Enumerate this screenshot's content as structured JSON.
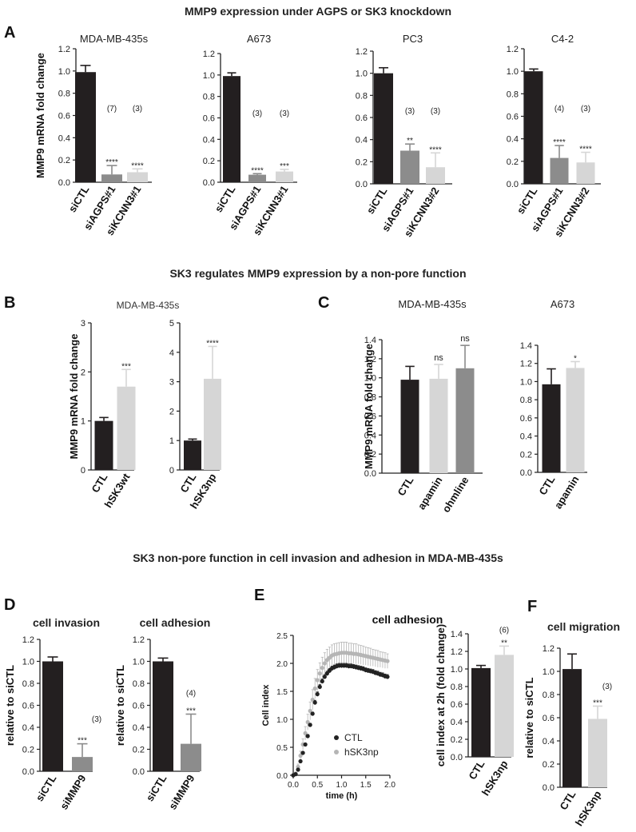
{
  "figure": {
    "section_a_title": "MMP9 expression under AGPS or SK3 knockdown",
    "section_bc_title": "SK3 regulates MMP9 expression by a non-pore function",
    "section_def_title": "SK3 non-pore function in cell invasion and adhesion in MDA-MB-435s",
    "panel_labels": [
      "A",
      "B",
      "C",
      "D",
      "E",
      "F"
    ],
    "shared_titles": {
      "b": "MDA-MB-435s"
    }
  },
  "colors": {
    "black": "#231f20",
    "gray": "#8c8c8c",
    "light": "#d6d6d6",
    "ctl_dot": "#222222",
    "np_dot": "#b5b5b5"
  },
  "chart_data": [
    {
      "id": "a1",
      "type": "bar",
      "title": "MDA-MB-435s",
      "ylabel": "MMP9 mRNA fold change",
      "ylim": [
        0,
        1.2
      ],
      "yticks": [
        "0.0",
        "0.2",
        "0.4",
        "0.6",
        "0.8",
        "1.0",
        "1.2"
      ],
      "categories": [
        "siCTL",
        "siAGPS#1",
        "siKCNN3#1"
      ],
      "values": [
        0.99,
        0.07,
        0.09
      ],
      "errors": [
        0.06,
        0.08,
        0.03
      ],
      "colors": [
        "black",
        "gray",
        "light"
      ],
      "stars": [
        "",
        "****",
        "****"
      ],
      "n_labels": [
        "",
        "(7)",
        "(3)"
      ]
    },
    {
      "id": "a2",
      "type": "bar",
      "title": "A673",
      "ylabel": "",
      "ylim": [
        0,
        1.2
      ],
      "yticks": [
        "0.0",
        "0.2",
        "0.4",
        "0.6",
        "0.8",
        "1.0",
        "1.2"
      ],
      "categories": [
        "siCTL",
        "siAGPS#1",
        "siKCNN3#1"
      ],
      "values": [
        0.99,
        0.07,
        0.1
      ],
      "errors": [
        0.03,
        0.01,
        0.02
      ],
      "colors": [
        "black",
        "gray",
        "light"
      ],
      "stars": [
        "",
        "****",
        "***"
      ],
      "n_labels": [
        "",
        "(3)",
        "(3)"
      ]
    },
    {
      "id": "a3",
      "type": "bar",
      "title": "PC3",
      "ylabel": "",
      "ylim": [
        0,
        1.2
      ],
      "yticks": [
        "0.0",
        "0.2",
        "0.4",
        "0.6",
        "0.8",
        "1.0",
        "1.2"
      ],
      "categories": [
        "siCTL",
        "siAGPS#1",
        "siKCNN3#2"
      ],
      "values": [
        1.0,
        0.3,
        0.15
      ],
      "errors": [
        0.05,
        0.06,
        0.13
      ],
      "colors": [
        "black",
        "gray",
        "light"
      ],
      "stars": [
        "",
        "**",
        "****"
      ],
      "n_labels": [
        "",
        "(3)",
        "(3)"
      ]
    },
    {
      "id": "a4",
      "type": "bar",
      "title": "C4-2",
      "ylabel": "",
      "ylim": [
        0,
        1.2
      ],
      "yticks": [
        "0.0",
        "0.2",
        "0.4",
        "0.6",
        "0.8",
        "1.0",
        "1.2"
      ],
      "categories": [
        "siCTL",
        "siAGPS#1",
        "siKCNN3#2"
      ],
      "values": [
        1.0,
        0.23,
        0.19
      ],
      "errors": [
        0.02,
        0.11,
        0.09
      ],
      "colors": [
        "black",
        "gray",
        "light"
      ],
      "stars": [
        "",
        "****",
        "****"
      ],
      "n_labels": [
        "",
        "(4)",
        "(3)"
      ]
    },
    {
      "id": "b1",
      "type": "bar",
      "title": "",
      "ylabel": "MMP9 mRNA fold change",
      "ylim": [
        0,
        3
      ],
      "yticks": [
        "0",
        "1",
        "2",
        "3"
      ],
      "categories": [
        "CTL",
        "hSK3wt"
      ],
      "values": [
        1.0,
        1.7
      ],
      "errors": [
        0.07,
        0.35
      ],
      "colors": [
        "black",
        "light"
      ],
      "stars": [
        "",
        "***"
      ],
      "n_labels": [
        "",
        ""
      ]
    },
    {
      "id": "b2",
      "type": "bar",
      "title": "",
      "ylabel": "",
      "ylim": [
        0,
        5
      ],
      "yticks": [
        "0",
        "1",
        "2",
        "3",
        "4",
        "5"
      ],
      "categories": [
        "CTL",
        "hSK3np"
      ],
      "values": [
        1.0,
        3.1
      ],
      "errors": [
        0.05,
        1.1
      ],
      "colors": [
        "black",
        "light"
      ],
      "stars": [
        "",
        "****"
      ],
      "n_labels": [
        "",
        ""
      ]
    },
    {
      "id": "c1",
      "type": "bar",
      "title": "MDA-MB-435s",
      "ylabel": "MMP9 mRNA fold change",
      "ylim": [
        0,
        1.4
      ],
      "yticks": [
        "0.0",
        "0.2",
        "0.4",
        "0.6",
        "0.8",
        "1.0",
        "1.2",
        "1.4"
      ],
      "categories": [
        "CTL",
        "apamin",
        "ohmline"
      ],
      "values": [
        0.98,
        0.99,
        1.1
      ],
      "errors": [
        0.14,
        0.15,
        0.24
      ],
      "colors": [
        "black",
        "light",
        "gray"
      ],
      "stars": [
        "",
        "ns",
        "ns"
      ],
      "n_labels": [
        "",
        "",
        ""
      ]
    },
    {
      "id": "c2",
      "type": "bar",
      "title": "A673",
      "ylabel": "",
      "ylim": [
        0,
        1.4
      ],
      "yticks": [
        "0.0",
        "0.2",
        "0.4",
        "0.6",
        "0.8",
        "1.0",
        "1.2",
        "1.4"
      ],
      "categories": [
        "CTL",
        "apamin"
      ],
      "values": [
        0.97,
        1.15
      ],
      "errors": [
        0.17,
        0.07
      ],
      "colors": [
        "black",
        "light"
      ],
      "stars": [
        "",
        "*"
      ],
      "n_labels": [
        "",
        ""
      ]
    },
    {
      "id": "d1",
      "type": "bar",
      "title": "cell invasion",
      "ylabel": "relative to siCTL",
      "ylim": [
        0,
        1.2
      ],
      "yticks": [
        "0.0",
        "0.2",
        "0.4",
        "0.6",
        "0.8",
        "1.0",
        "1.2"
      ],
      "categories": [
        "siCTL",
        "siMMP9"
      ],
      "values": [
        1.0,
        0.13
      ],
      "errors": [
        0.04,
        0.12
      ],
      "colors": [
        "black",
        "gray"
      ],
      "stars": [
        "",
        "***"
      ],
      "n_labels": [
        "",
        "(3)"
      ]
    },
    {
      "id": "d2",
      "type": "bar",
      "title": "cell adhesion",
      "ylabel": "relative to siCTL",
      "ylim": [
        0,
        1.2
      ],
      "yticks": [
        "0.0",
        "0.2",
        "0.4",
        "0.6",
        "0.8",
        "1.0",
        "1.2"
      ],
      "categories": [
        "siCTL",
        "siMMP9"
      ],
      "values": [
        1.0,
        0.25
      ],
      "errors": [
        0.03,
        0.27
      ],
      "colors": [
        "black",
        "gray"
      ],
      "stars": [
        "",
        "***"
      ],
      "n_labels": [
        "",
        "(4)"
      ]
    },
    {
      "id": "e1",
      "type": "scatter",
      "title": "cell adhesion",
      "xlabel": "time (h)",
      "ylabel": "Cell index",
      "xlim": [
        0,
        2
      ],
      "ylim": [
        0,
        2.5
      ],
      "xticks": [
        "0.0",
        "0.5",
        "1.0",
        "1.5",
        "2.0"
      ],
      "yticks": [
        "0.0",
        "0.5",
        "1.0",
        "1.5",
        "2.0",
        "2.5"
      ],
      "x": [
        0.0,
        0.05,
        0.1,
        0.15,
        0.2,
        0.25,
        0.3,
        0.35,
        0.4,
        0.45,
        0.5,
        0.55,
        0.6,
        0.65,
        0.7,
        0.75,
        0.8,
        0.85,
        0.9,
        0.95,
        1.0,
        1.05,
        1.1,
        1.15,
        1.2,
        1.25,
        1.3,
        1.35,
        1.4,
        1.45,
        1.5,
        1.55,
        1.6,
        1.65,
        1.7,
        1.75,
        1.8,
        1.85,
        1.9,
        1.95
      ],
      "series": [
        {
          "name": "CTL",
          "color": "ctl_dot",
          "values": [
            0.0,
            0.02,
            0.1,
            0.25,
            0.4,
            0.55,
            0.7,
            0.9,
            1.1,
            1.3,
            1.45,
            1.58,
            1.68,
            1.76,
            1.82,
            1.87,
            1.91,
            1.93,
            1.95,
            1.96,
            1.96,
            1.96,
            1.96,
            1.95,
            1.95,
            1.94,
            1.93,
            1.92,
            1.91,
            1.9,
            1.88,
            1.87,
            1.86,
            1.85,
            1.83,
            1.82,
            1.8,
            1.79,
            1.77,
            1.76
          ],
          "errors": [
            0,
            0,
            0.01,
            0.01,
            0.02,
            0.02,
            0.03,
            0.03,
            0.03,
            0.04,
            0.04,
            0.04,
            0.04,
            0.04,
            0.04,
            0.04,
            0.04,
            0.04,
            0.04,
            0.04,
            0.04,
            0.04,
            0.04,
            0.04,
            0.04,
            0.04,
            0.04,
            0.04,
            0.04,
            0.04,
            0.04,
            0.04,
            0.04,
            0.04,
            0.04,
            0.04,
            0.04,
            0.04,
            0.04,
            0.04
          ]
        },
        {
          "name": "hSK3np",
          "color": "np_dot",
          "values": [
            0.0,
            0.03,
            0.15,
            0.35,
            0.55,
            0.75,
            0.95,
            1.15,
            1.35,
            1.55,
            1.7,
            1.82,
            1.92,
            2.0,
            2.06,
            2.1,
            2.14,
            2.16,
            2.17,
            2.18,
            2.19,
            2.19,
            2.19,
            2.18,
            2.18,
            2.17,
            2.17,
            2.16,
            2.15,
            2.14,
            2.13,
            2.12,
            2.11,
            2.1,
            2.09,
            2.08,
            2.07,
            2.06,
            2.05,
            2.04
          ],
          "errors": [
            0,
            0.02,
            0.05,
            0.08,
            0.1,
            0.12,
            0.14,
            0.16,
            0.18,
            0.18,
            0.19,
            0.19,
            0.19,
            0.19,
            0.19,
            0.19,
            0.19,
            0.19,
            0.19,
            0.19,
            0.19,
            0.19,
            0.19,
            0.18,
            0.18,
            0.18,
            0.18,
            0.17,
            0.17,
            0.17,
            0.16,
            0.16,
            0.16,
            0.15,
            0.15,
            0.15,
            0.14,
            0.14,
            0.14,
            0.13
          ]
        }
      ]
    },
    {
      "id": "e2",
      "type": "bar",
      "title": "",
      "ylabel": "cell index at 2h (fold change)",
      "ylim": [
        0,
        1.4
      ],
      "yticks": [
        "0.0",
        "0.2",
        "0.4",
        "0.6",
        "0.8",
        "1.0",
        "1.2",
        "1.4"
      ],
      "categories": [
        "CTL",
        "hSK3np"
      ],
      "values": [
        1.01,
        1.16
      ],
      "errors": [
        0.03,
        0.1
      ],
      "colors": [
        "black",
        "light"
      ],
      "stars": [
        "",
        "**"
      ],
      "n_labels": [
        "",
        "(6)"
      ]
    },
    {
      "id": "f1",
      "type": "bar",
      "title": "cell migration",
      "ylabel": "relative to siCTL",
      "ylim": [
        0,
        1.2
      ],
      "yticks": [
        "0.0",
        "0.2",
        "0.4",
        "0.6",
        "0.8",
        "1.0",
        "1.2"
      ],
      "categories": [
        "CTL",
        "hSK3np"
      ],
      "values": [
        1.02,
        0.59
      ],
      "errors": [
        0.13,
        0.11
      ],
      "colors": [
        "black",
        "light"
      ],
      "stars": [
        "",
        "***"
      ],
      "n_labels": [
        "",
        "(3)"
      ]
    }
  ]
}
